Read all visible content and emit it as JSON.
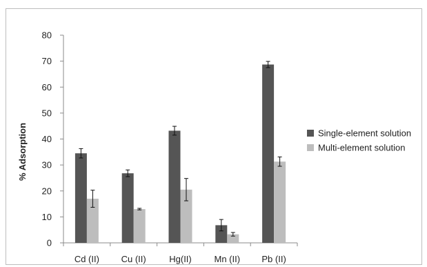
{
  "chart_data": {
    "type": "bar",
    "title": "",
    "xlabel": "",
    "ylabel": "% Adsorption",
    "ylim": [
      0,
      80
    ],
    "yticks": [
      0,
      10,
      20,
      30,
      40,
      50,
      60,
      70,
      80
    ],
    "grid": false,
    "legend_position": "right",
    "categories": [
      "Cd (II)",
      "Cu (II)",
      "Hg(II)",
      "Mn (II)",
      "Pb (II)"
    ],
    "series": [
      {
        "name": "Single-element solution",
        "color": "#555555",
        "values": [
          34.5,
          26.8,
          43.2,
          6.8,
          68.7
        ],
        "errors": [
          1.8,
          1.3,
          1.7,
          2.2,
          1.2
        ]
      },
      {
        "name": "Multi-element solution",
        "color": "#bdbdbd",
        "values": [
          17.0,
          13.0,
          20.5,
          3.3,
          31.3
        ],
        "errors": [
          3.3,
          0.3,
          4.3,
          0.7,
          1.8
        ]
      }
    ]
  }
}
